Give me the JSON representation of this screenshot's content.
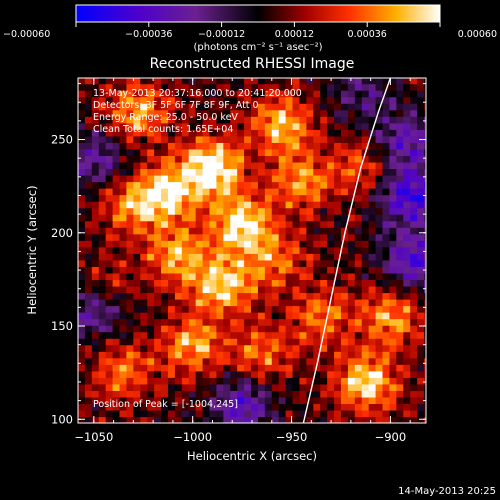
{
  "chart_data": {
    "type": "heatmap",
    "title": "Reconstructed RHESSI Image",
    "xlabel": "Heliocentric X (arcsec)",
    "ylabel": "Heliocentric Y (arcsec)",
    "xlim": [
      -1058,
      -882
    ],
    "ylim": [
      98,
      283
    ],
    "x_ticks": [
      -1050,
      -1000,
      -950,
      -900
    ],
    "y_ticks": [
      100,
      150,
      200,
      250
    ],
    "colorbar": {
      "min": -0.0006,
      "max": 0.0006,
      "ticks": [
        -0.0006,
        -0.00036,
        -0.00012,
        0.00012,
        0.00036,
        0.0006
      ],
      "tick_labels": [
        "-0.00060",
        "-0.00036",
        "-0.00012",
        "0.00012",
        "0.00036",
        "0.00060"
      ],
      "unit_label": "(photons cm⁻² s⁻¹ asec⁻²)"
    },
    "annotations": {
      "time": "13-May-2013 20:37:16.000 to 20:41:20.000",
      "detectors": "Detectors: 3F 5F 6F 7F 8F 9F, Att 0",
      "energy": "Energy Range: 25.0 - 50.0 keV",
      "clean": "Clean     Total counts: 1.65E+04",
      "peak": "Position of Peak = [-1004,245]"
    },
    "limb": [
      [
        -944,
        98
      ],
      [
        -937,
        130
      ],
      [
        -930,
        165
      ],
      [
        -923,
        200
      ],
      [
        -915,
        235
      ],
      [
        -906,
        265
      ],
      [
        -900,
        283
      ]
    ],
    "emission_blobs": [
      {
        "x": -990,
        "y": 235,
        "v": 0.00058
      },
      {
        "x": -1012,
        "y": 222,
        "v": 0.00045
      },
      {
        "x": -975,
        "y": 205,
        "v": 0.00052
      },
      {
        "x": -985,
        "y": 172,
        "v": 0.00048
      },
      {
        "x": -1008,
        "y": 188,
        "v": 0.0004
      },
      {
        "x": -1030,
        "y": 215,
        "v": 0.00035
      },
      {
        "x": -1028,
        "y": 265,
        "v": 0.00038
      },
      {
        "x": -955,
        "y": 258,
        "v": 0.00042
      },
      {
        "x": -945,
        "y": 228,
        "v": 0.00035
      },
      {
        "x": -958,
        "y": 185,
        "v": 0.0003
      },
      {
        "x": -1000,
        "y": 140,
        "v": 0.0004
      },
      {
        "x": -1035,
        "y": 125,
        "v": 0.00032
      },
      {
        "x": -965,
        "y": 135,
        "v": 0.0003
      },
      {
        "x": -912,
        "y": 120,
        "v": 0.0005
      },
      {
        "x": -900,
        "y": 155,
        "v": 0.00038
      },
      {
        "x": -935,
        "y": 155,
        "v": 0.0003
      },
      {
        "x": -915,
        "y": 235,
        "v": 0.00025
      },
      {
        "x": -1045,
        "y": 170,
        "v": 0.00022
      }
    ],
    "negative_blobs": [
      {
        "x": -890,
        "y": 220,
        "v": -0.0005
      },
      {
        "x": -888,
        "y": 185,
        "v": -0.00042
      },
      {
        "x": -892,
        "y": 250,
        "v": -0.00035
      },
      {
        "x": -1050,
        "y": 160,
        "v": -0.00038
      },
      {
        "x": -1048,
        "y": 240,
        "v": -0.0003
      },
      {
        "x": -975,
        "y": 108,
        "v": -0.0004
      },
      {
        "x": -915,
        "y": 275,
        "v": -0.00022
      }
    ]
  },
  "timestamp": "14-May-2013 20:25"
}
